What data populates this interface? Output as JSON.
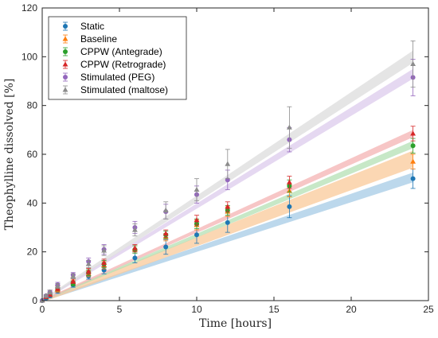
{
  "chart_data": {
    "type": "scatter",
    "title": "",
    "xlabel": "Time [hours]",
    "ylabel": "Theophylline dissolved [%]",
    "xlim": [
      0,
      25
    ],
    "ylim": [
      0,
      120
    ],
    "xticks": [
      0,
      5,
      10,
      15,
      20,
      25
    ],
    "yticks": [
      0,
      20,
      40,
      60,
      80,
      100,
      120
    ],
    "grid": false,
    "legend_position": "top-left",
    "x": [
      0,
      0.25,
      0.5,
      1,
      2,
      3,
      4,
      6,
      8,
      10,
      12,
      16,
      24
    ],
    "series": [
      {
        "name": "Static",
        "color": "#1f77b4",
        "marker": "circle",
        "values": [
          0,
          1.0,
          2.0,
          4.0,
          6.5,
          10.0,
          12.5,
          17.5,
          22.0,
          27.0,
          32.0,
          38.5,
          50.0
        ],
        "errors": [
          0,
          0.5,
          0.8,
          1.0,
          1.0,
          1.2,
          1.5,
          2.0,
          3.0,
          3.5,
          4.0,
          4.5,
          4.0
        ],
        "band_end": [
          0,
          50.5
        ],
        "band_halfwidth": 2.0,
        "band_color": "#a6cbe6"
      },
      {
        "name": "Baseline",
        "color": "#ff7f0e",
        "marker": "triangle",
        "values": [
          0,
          1.5,
          2.5,
          4.5,
          7.5,
          11.0,
          14.5,
          21.0,
          26.0,
          31.0,
          36.5,
          45.0,
          57.0
        ],
        "errors": [
          0,
          0.5,
          0.8,
          1.0,
          1.0,
          1.2,
          1.5,
          1.5,
          1.5,
          2.0,
          2.0,
          2.5,
          3.0
        ],
        "band_end": [
          0,
          58.0
        ],
        "band_halfwidth": 3.5,
        "band_color": "#f9c999"
      },
      {
        "name": "CPPW (Antegrade)",
        "color": "#2ca02c",
        "marker": "circle",
        "values": [
          0,
          1.5,
          2.5,
          5.0,
          7.0,
          11.5,
          15.0,
          21.0,
          27.0,
          31.5,
          37.0,
          47.0,
          63.5
        ],
        "errors": [
          0,
          0.5,
          0.8,
          1.0,
          1.0,
          1.2,
          1.5,
          1.5,
          1.5,
          2.0,
          2.0,
          2.5,
          3.0
        ],
        "band_end": [
          0,
          64.0
        ],
        "band_halfwidth": 1.5,
        "band_color": "#b4e0b4"
      },
      {
        "name": "CPPW (Retrograde)",
        "color": "#d62728",
        "marker": "triangle",
        "values": [
          0,
          1.5,
          2.5,
          5.0,
          8.0,
          12.0,
          15.5,
          21.5,
          27.5,
          33.0,
          38.5,
          48.5,
          68.5
        ],
        "errors": [
          0,
          0.5,
          0.8,
          1.0,
          1.0,
          1.2,
          1.5,
          1.5,
          1.5,
          2.0,
          2.0,
          2.5,
          3.0
        ],
        "band_end": [
          0,
          68.5
        ],
        "band_halfwidth": 1.5,
        "band_color": "#f4b3b3"
      },
      {
        "name": "Stimulated (PEG)",
        "color": "#9467bd",
        "marker": "circle",
        "values": [
          0,
          2.0,
          3.5,
          6.5,
          10.5,
          16.0,
          21.0,
          30.0,
          36.5,
          43.5,
          49.5,
          66.0,
          91.5
        ],
        "errors": [
          0,
          0.5,
          0.8,
          1.0,
          1.0,
          1.5,
          2.0,
          2.5,
          3.0,
          3.5,
          4.0,
          5.0,
          7.5
        ],
        "band_end": [
          0,
          93.0
        ],
        "band_halfwidth": 2.0,
        "band_color": "#dccbec"
      },
      {
        "name": "Stimulated (maltose)",
        "color": "#8c8c8c",
        "marker": "triangle",
        "values": [
          0,
          2.0,
          3.5,
          6.0,
          10.0,
          15.0,
          20.5,
          29.0,
          37.0,
          45.5,
          56.0,
          71.0,
          97.0
        ],
        "errors": [
          0,
          0.5,
          0.8,
          1.0,
          1.0,
          1.5,
          2.0,
          2.5,
          3.5,
          4.5,
          6.0,
          8.5,
          9.5
        ],
        "band_end": [
          0,
          100.0
        ],
        "band_halfwidth": 2.5,
        "band_color": "#dcdcdc"
      }
    ]
  }
}
